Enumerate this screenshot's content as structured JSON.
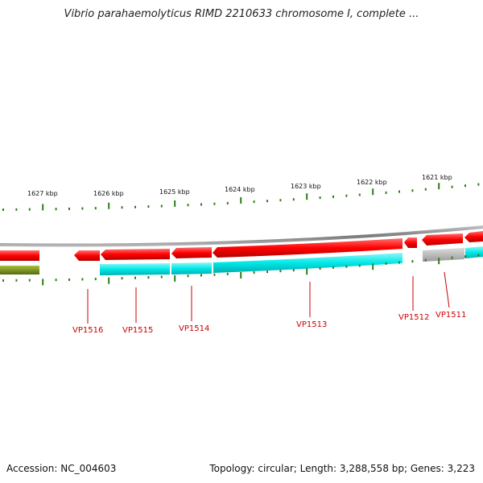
{
  "title": "Vibrio parahaemolyticus RIMD 2210633 chromosome I, complete ...",
  "footer": {
    "accession": "Accession: NC_004603",
    "summary": "Topology: circular; Length: 3,288,558 bp; Genes: 3,223"
  },
  "ruler": {
    "labels": [
      {
        "text": "1627 kbp",
        "kbp": 1627
      },
      {
        "text": "1626 kbp",
        "kbp": 1626
      },
      {
        "text": "1625 kbp",
        "kbp": 1625
      },
      {
        "text": "1624 kbp",
        "kbp": 1624
      },
      {
        "text": "1623 kbp",
        "kbp": 1623
      },
      {
        "text": "1622 kbp",
        "kbp": 1622
      },
      {
        "text": "1621 kbp",
        "kbp": 1621
      }
    ]
  },
  "genes": [
    {
      "label": "VP1516"
    },
    {
      "label": "VP1515"
    },
    {
      "label": "VP1514"
    },
    {
      "label": "VP1513"
    },
    {
      "label": "VP1512"
    },
    {
      "label": "VP1511"
    }
  ],
  "colors": {
    "backbone": "#8a8a8a",
    "cds_red": "#ff0000",
    "cds_cyan": "#00e5e5",
    "gray_feature": "#b8b8b8",
    "olive_feature": "#7a9a20",
    "tick": "#2e7d1a",
    "gene_label": "#cc0000"
  }
}
